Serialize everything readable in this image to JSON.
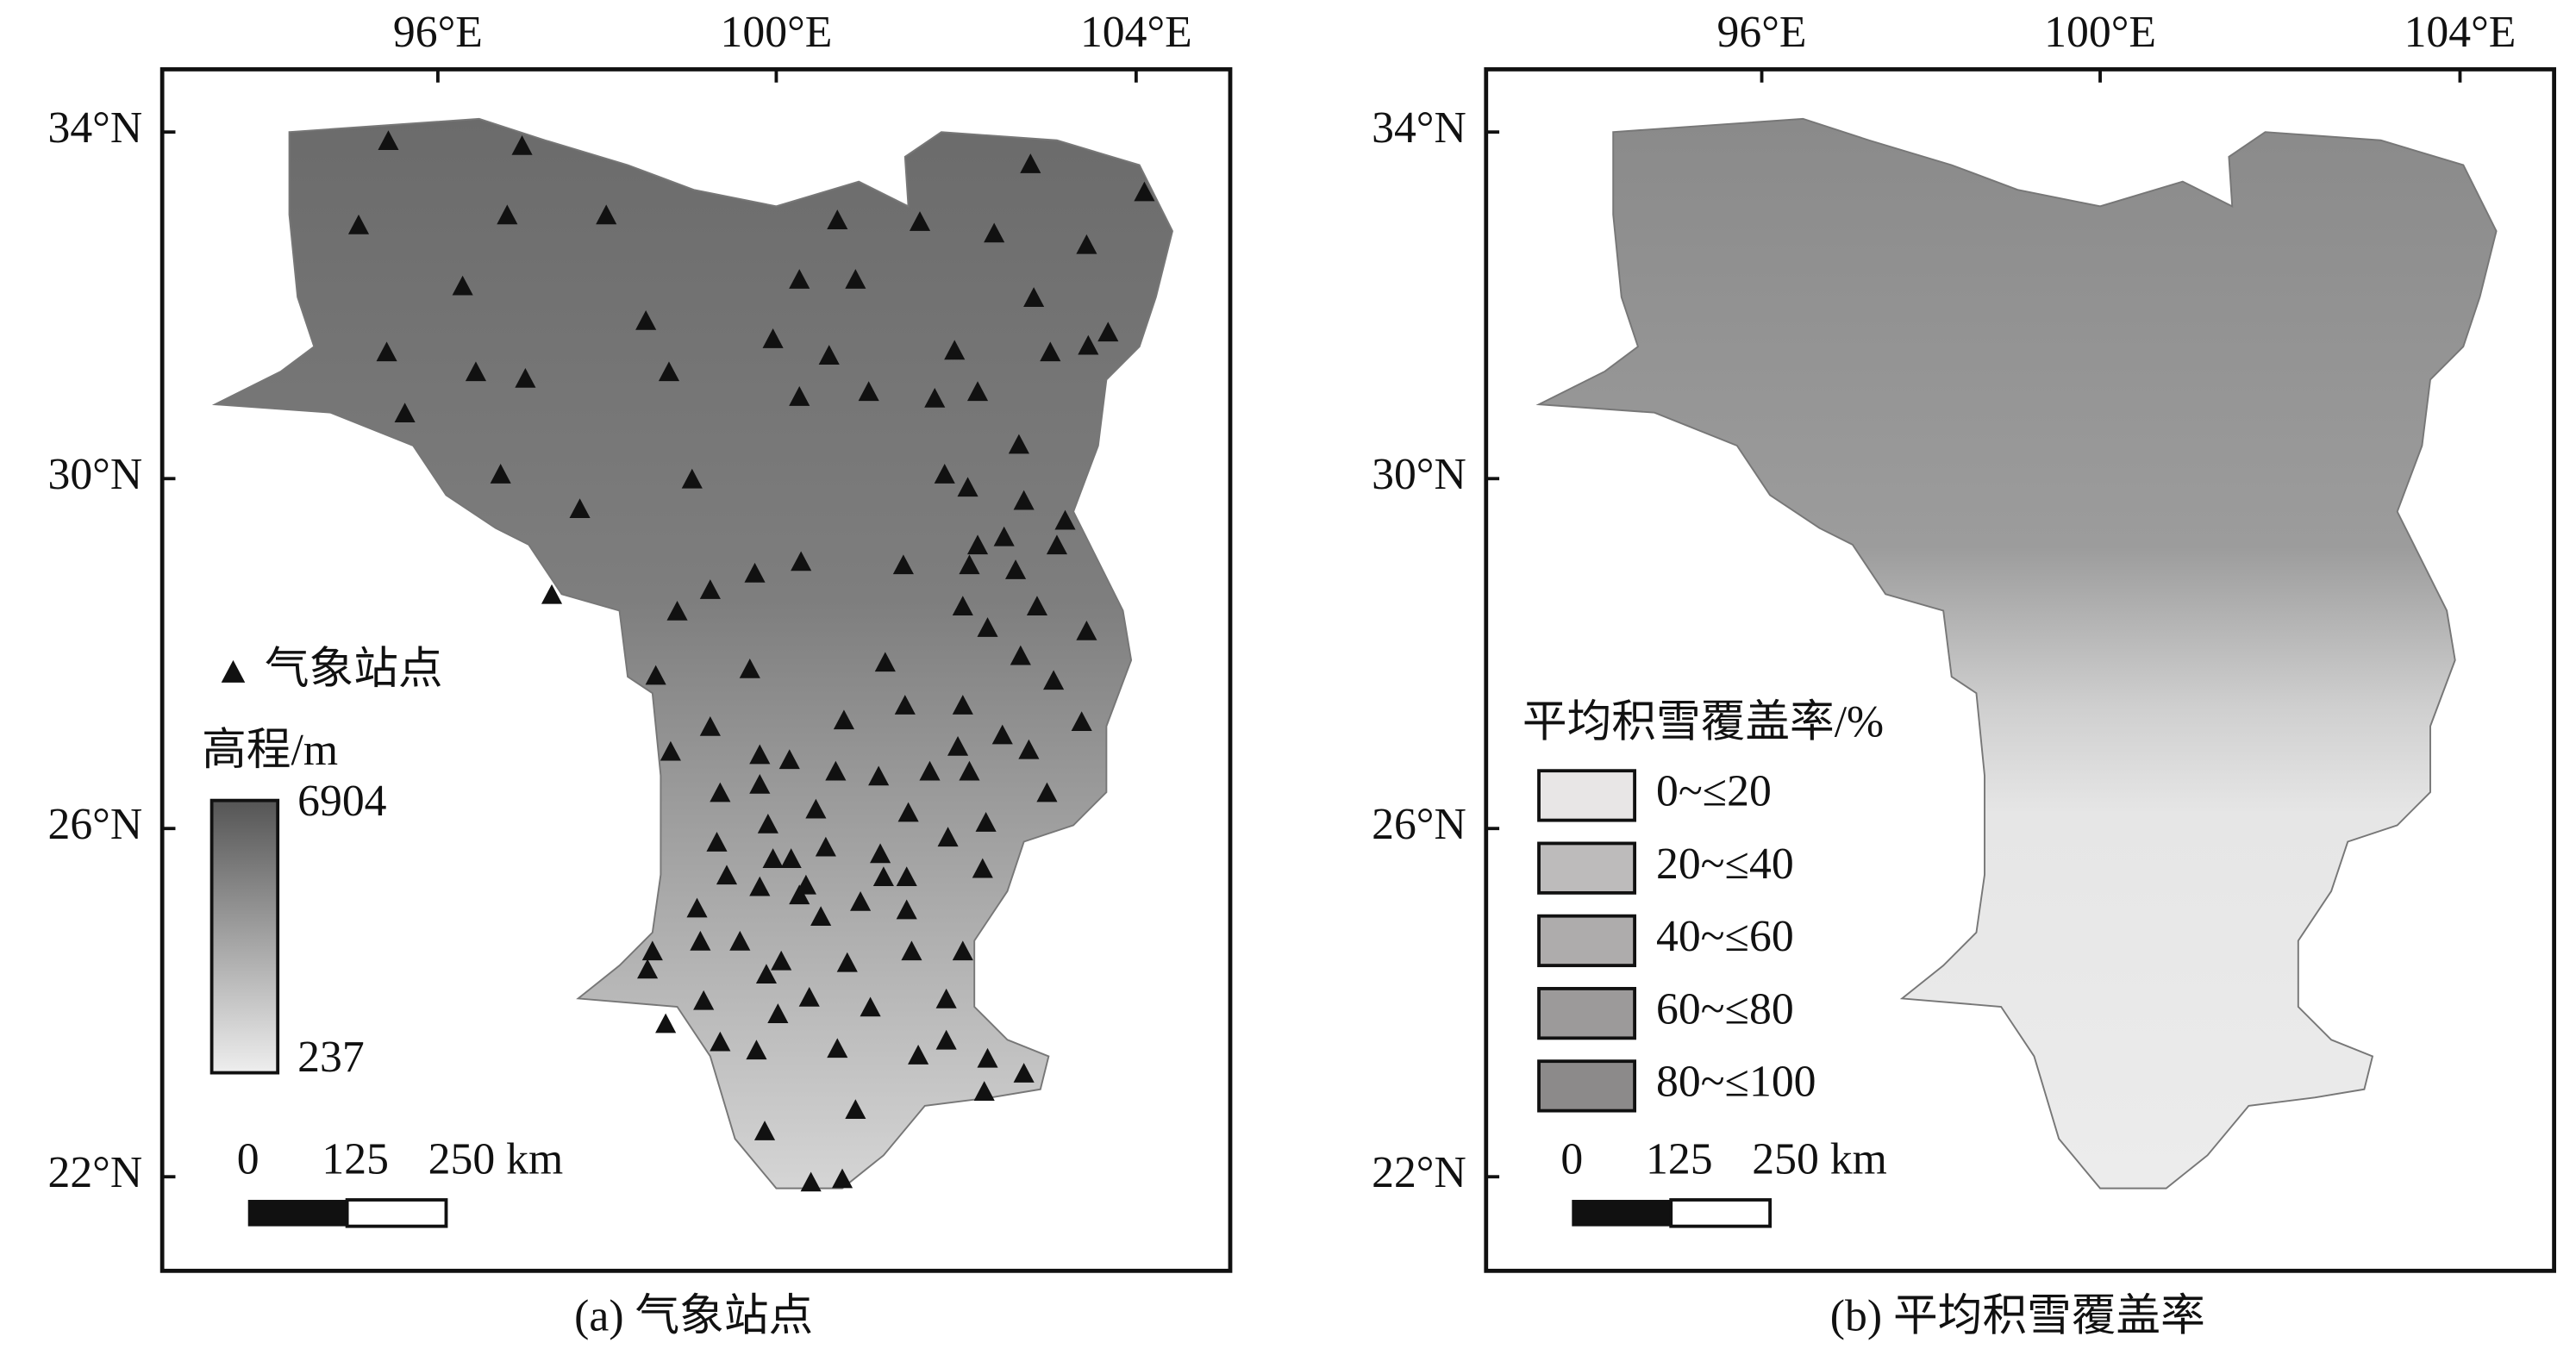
{
  "panels": [
    {
      "caption": "(a) 气象站点",
      "x_ticks": [
        "96°E",
        "100°E",
        "104°E"
      ],
      "y_ticks": [
        "34°N",
        "30°N",
        "26°N",
        "22°N"
      ],
      "legend": {
        "station": "气象站点",
        "elevation_title": "高程/m",
        "max": 6904,
        "min": 237
      },
      "scale_bar": [
        "0",
        "125",
        "250 km"
      ]
    },
    {
      "caption": "(b) 平均积雪覆盖率",
      "x_ticks": [
        "96°E",
        "100°E",
        "104°E"
      ],
      "y_ticks": [
        "34°N",
        "30°N",
        "26°N",
        "22°N"
      ],
      "legend": {
        "title": "平均积雪覆盖率/%",
        "classes": [
          "0~≤20",
          "20~≤40",
          "40~≤60",
          "60~≤80",
          "80~≤100"
        ]
      },
      "scale_bar": [
        "0",
        "125",
        "250 km"
      ]
    }
  ]
}
